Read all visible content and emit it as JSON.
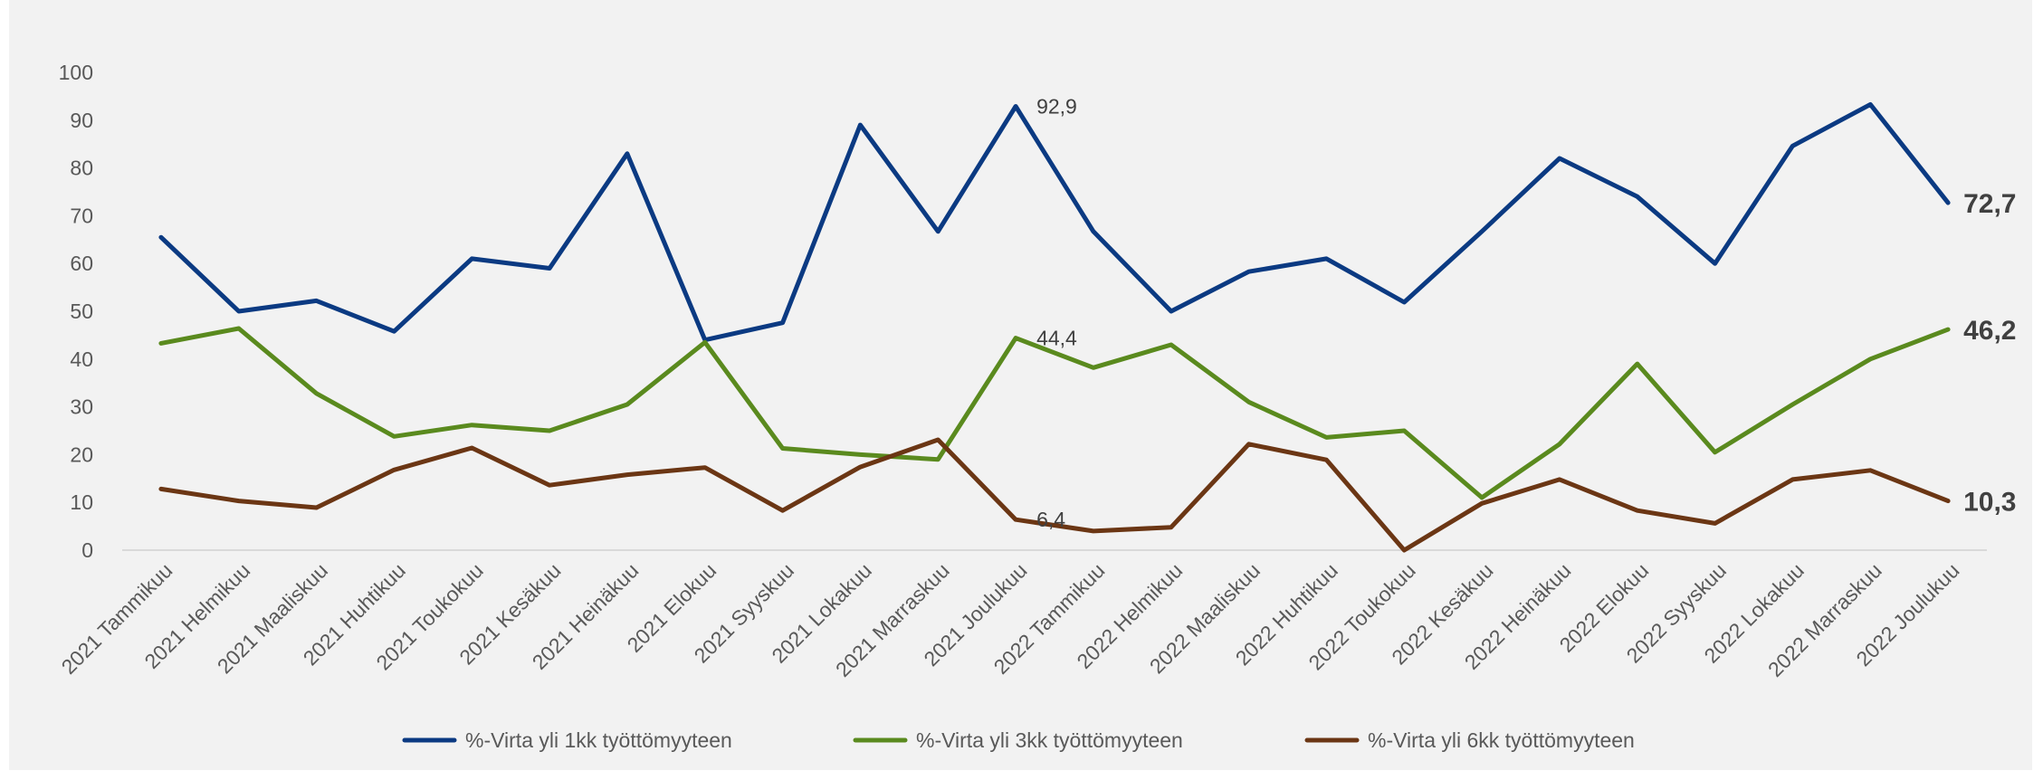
{
  "chart_data": {
    "type": "line",
    "title": "",
    "xlabel": "",
    "ylabel": "",
    "ylim": [
      0,
      100
    ],
    "yticks": [
      "0",
      "10",
      "20",
      "30",
      "40",
      "50",
      "60",
      "70",
      "80",
      "90",
      "100"
    ],
    "grid": false,
    "legend_position": "bottom",
    "categories": [
      "2021 Tammikuu",
      "2021 Helmikuu",
      "2021 Maaliskuu",
      "2021 Huhtikuu",
      "2021 Toukokuu",
      "2021 Kesäkuu",
      "2021 Heinäkuu",
      "2021 Elokuu",
      "2021 Syyskuu",
      "2021 Lokakuu",
      "2021 Marraskuu",
      "2021 Joulukuu",
      "2022 Tammikuu",
      "2022 Helmikuu",
      "2022 Maaliskuu",
      "2022 Huhtikuu",
      "2022 Toukokuu",
      "2022 Kesäkuu",
      "2022 Heinäkuu",
      "2022 Elokuu",
      "2022 Syyskuu",
      "2022 Lokakuu",
      "2022 Marraskuu",
      "2022 Joulukuu"
    ],
    "series": [
      {
        "name": "%-Virta yli 1kk työttömyyteen",
        "color": "#0b3a82",
        "values": [
          65.5,
          50.0,
          52.2,
          45.8,
          61.0,
          59.0,
          83.0,
          44.0,
          47.6,
          89.0,
          66.7,
          92.9,
          66.7,
          50.0,
          58.3,
          61.0,
          51.9,
          66.7,
          82.0,
          74.0,
          60.0,
          84.6,
          93.3,
          72.7
        ]
      },
      {
        "name": "%-Virta yli 3kk työttömyyteen",
        "color": "#5a8a1e",
        "values": [
          43.3,
          46.4,
          32.8,
          23.8,
          26.2,
          25.0,
          30.5,
          43.5,
          21.3,
          20.0,
          19.0,
          44.4,
          38.2,
          43.0,
          31.0,
          23.6,
          25.0,
          11.0,
          22.2,
          39.0,
          20.5,
          30.5,
          40.0,
          46.2
        ]
      },
      {
        "name": "%-Virta yli 6kk työttömyyteen",
        "color": "#6b3614",
        "values": [
          12.8,
          10.3,
          8.9,
          16.8,
          21.4,
          13.6,
          15.8,
          17.3,
          8.3,
          17.4,
          23.1,
          6.4,
          4.0,
          4.8,
          22.2,
          18.9,
          0.0,
          9.8,
          14.8,
          8.3,
          5.6,
          14.8,
          16.7,
          10.3
        ]
      }
    ],
    "annotations": [
      {
        "series": 0,
        "index": 11,
        "text": "92,9",
        "style": "small"
      },
      {
        "series": 1,
        "index": 11,
        "text": "44,4",
        "style": "small"
      },
      {
        "series": 2,
        "index": 11,
        "text": "6,4",
        "style": "small"
      },
      {
        "series": 0,
        "index": 23,
        "text": "72,7",
        "style": "big"
      },
      {
        "series": 1,
        "index": 23,
        "text": "46,2",
        "style": "big"
      },
      {
        "series": 2,
        "index": 23,
        "text": "10,3",
        "style": "big"
      }
    ]
  },
  "colors": {
    "background": "#f2f2f2",
    "axis": "#d9d9d9",
    "text": "#595959"
  }
}
